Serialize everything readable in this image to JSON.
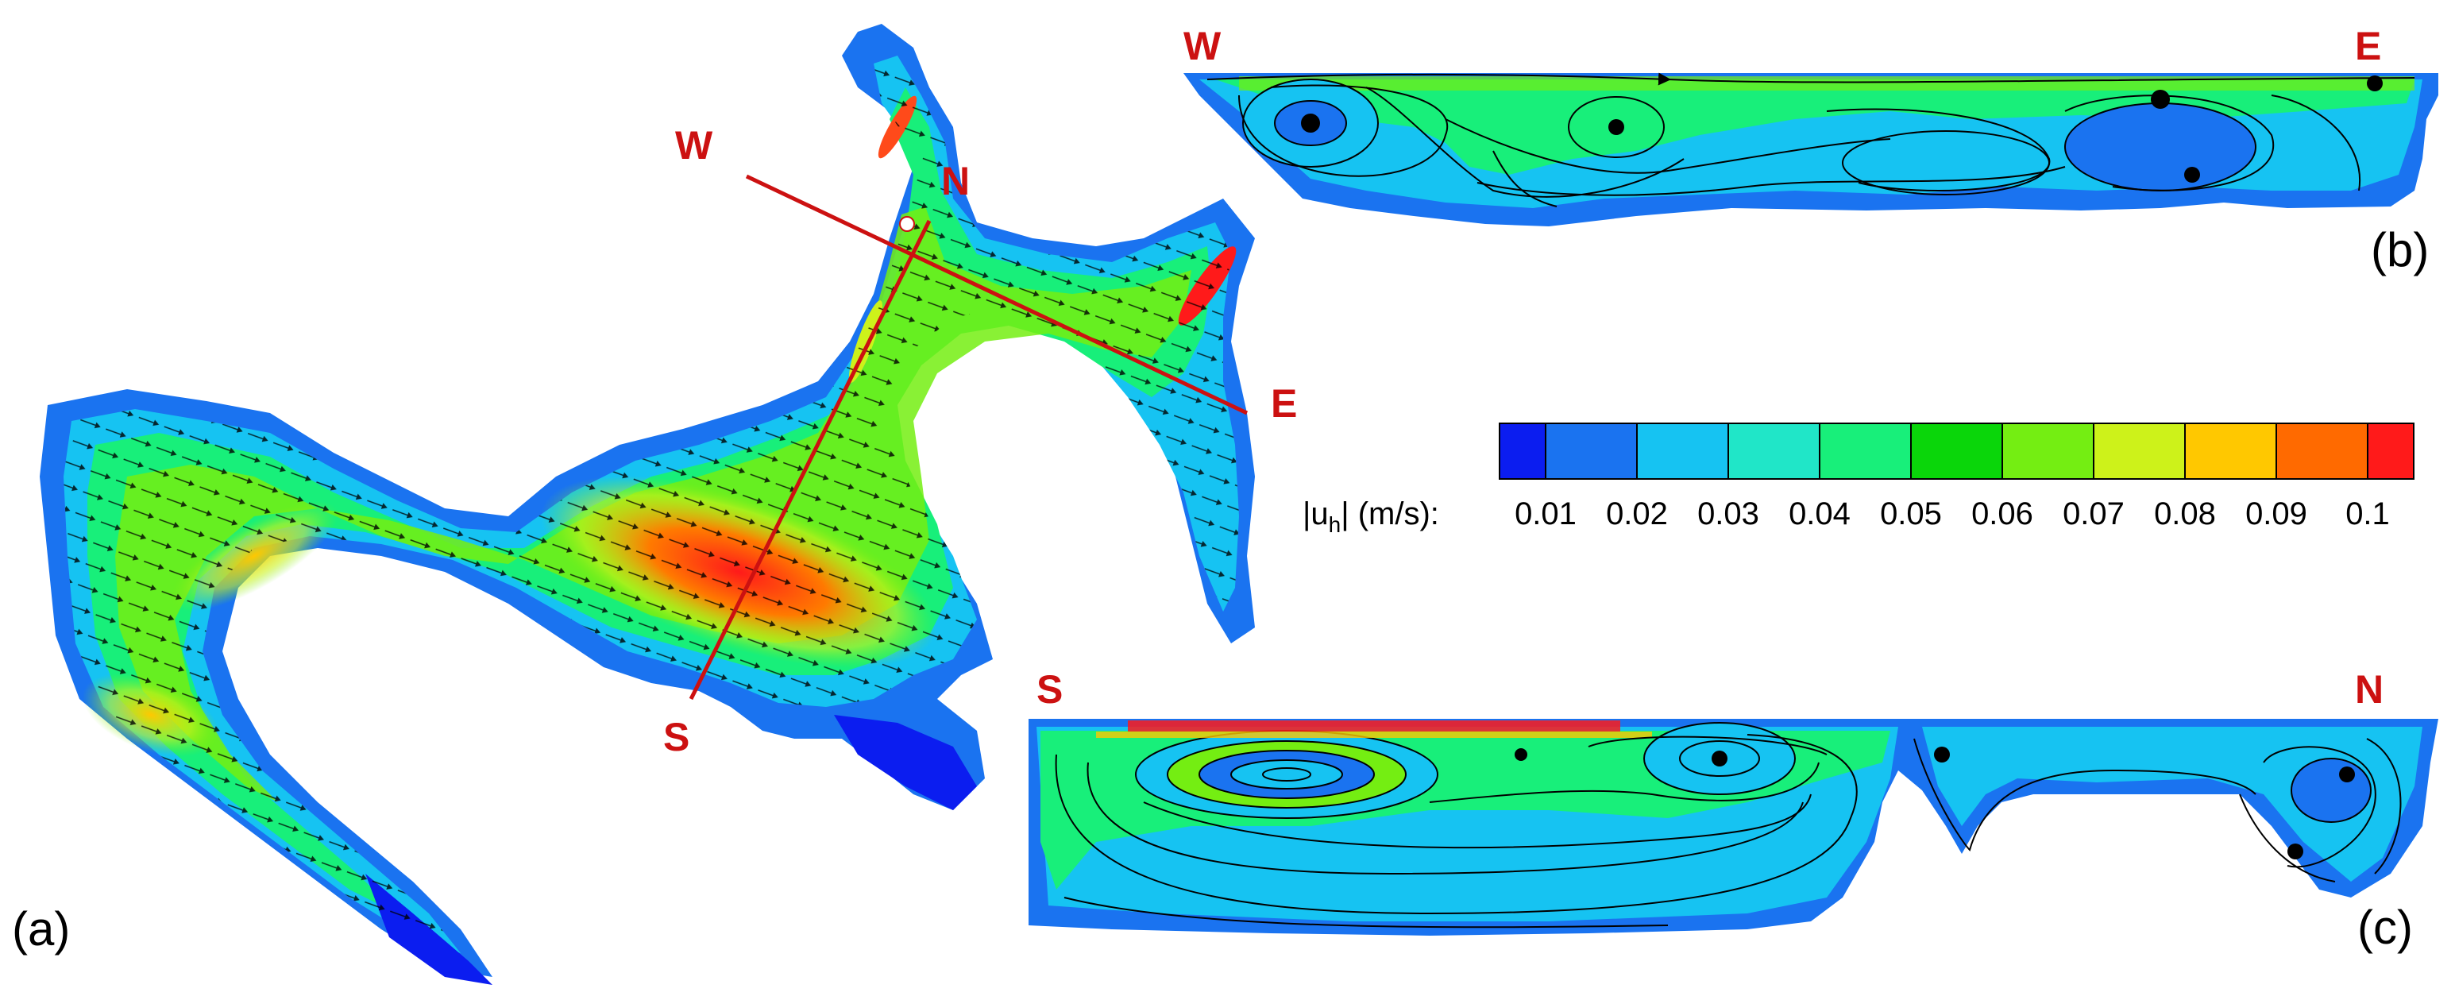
{
  "panels": {
    "a": {
      "label": "(a)"
    },
    "b": {
      "label": "(b)"
    },
    "c": {
      "label": "(c)"
    }
  },
  "transects": {
    "west": "W",
    "east": "E",
    "north": "N",
    "south": "S"
  },
  "sections": {
    "b": {
      "left": "W",
      "right": "E"
    },
    "c": {
      "left": "S",
      "right": "N"
    }
  },
  "colorbar": {
    "label_main": "|u",
    "label_sub": "h",
    "label_tail": "| (m/s):",
    "ticks": [
      "0.01",
      "0.02",
      "0.03",
      "0.04",
      "0.05",
      "0.06",
      "0.07",
      "0.08",
      "0.09",
      "0.1"
    ],
    "colors": [
      "#0b1df0",
      "#1a73f0",
      "#16c3f2",
      "#20e6c8",
      "#18ef7a",
      "#0ad60a",
      "#74ee12",
      "#cdf21a",
      "#ffc800",
      "#ff6a00",
      "#ff1a1a"
    ]
  },
  "palette": {
    "transect_line": "#cc1111",
    "streamline": "#000000"
  }
}
